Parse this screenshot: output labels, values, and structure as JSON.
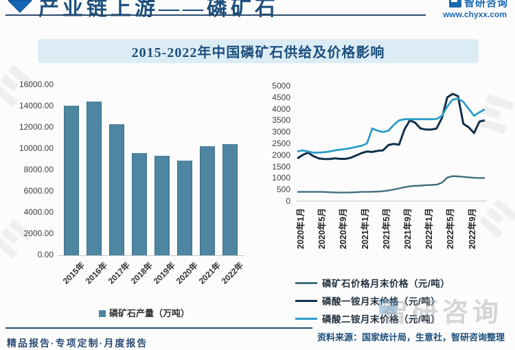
{
  "header": {
    "title": "产业链上游——磷矿石",
    "brand": "智研咨询",
    "website": "www.chyxx.com"
  },
  "main_title": "2015-2022年中国磷矿石供给及价格影响",
  "colors": {
    "navy_text": "#1c4f7c",
    "bar_fill": "#4e86a2",
    "title_bar_bg": "#dcecf4",
    "rock_line": "#3f6f7d",
    "map_line": "#103049",
    "dap_line": "#2b9cc8"
  },
  "chart_data": [
    {
      "type": "bar",
      "title": "",
      "legend": "磷矿石产量（万吨）",
      "categories": [
        "2015年",
        "2016年",
        "2017年",
        "2018年",
        "2019年",
        "2020年",
        "2021年",
        "2022年"
      ],
      "values": [
        14040,
        14440,
        12310,
        9630,
        9330,
        8890,
        10290,
        10470
      ],
      "ylim": [
        0,
        16000
      ],
      "ystep": 2000,
      "ytick_decimals": 2,
      "bar_color": "#4e86a2",
      "grid": false
    },
    {
      "type": "line",
      "title": "",
      "x_start": "2020年1月",
      "x_end": "2022年12月",
      "x_ticks": [
        "2020年1月",
        "2020年5月",
        "2020年9月",
        "2021年1月",
        "2021年5月",
        "2021年9月",
        "2022年1月",
        "2022年5月",
        "2022年9月"
      ],
      "x_tick_month_indices": [
        0,
        4,
        8,
        12,
        16,
        20,
        24,
        28,
        32
      ],
      "ylim": [
        0,
        5000
      ],
      "ystep": 500,
      "grid": false,
      "legend_position": "bottom-left",
      "series": [
        {
          "name": "磷矿石价格月末价格（元/吨）",
          "color": "#3f6f7d",
          "values": [
            400,
            400,
            400,
            400,
            400,
            395,
            385,
            375,
            370,
            370,
            375,
            385,
            400,
            400,
            405,
            410,
            430,
            460,
            500,
            550,
            600,
            640,
            660,
            670,
            690,
            700,
            710,
            800,
            1020,
            1080,
            1070,
            1050,
            1030,
            1010,
            1000,
            1005
          ]
        },
        {
          "name": "磷酸一铵月末价格（元/吨）",
          "color": "#103049",
          "values": [
            1850,
            2000,
            2100,
            1950,
            1850,
            1820,
            1820,
            1850,
            1830,
            1830,
            1880,
            1980,
            2080,
            2150,
            2130,
            2180,
            2200,
            2430,
            2480,
            2450,
            3100,
            3500,
            3400,
            3150,
            3100,
            3100,
            3150,
            3600,
            4500,
            4650,
            4550,
            3350,
            3200,
            2950,
            3450,
            3500
          ]
        },
        {
          "name": "磷酸二铵月末价格（元/吨）",
          "color": "#2b9cc8",
          "values": [
            2150,
            2200,
            2150,
            2100,
            2100,
            2120,
            2150,
            2200,
            2230,
            2260,
            2300,
            2350,
            2400,
            2500,
            3150,
            3050,
            3000,
            3050,
            3300,
            3500,
            3550,
            3550,
            3550,
            3550,
            3550,
            3550,
            3560,
            3700,
            4100,
            4400,
            4450,
            4300,
            4000,
            3700,
            3850,
            3980
          ]
        }
      ]
    }
  ],
  "footer": {
    "source": "资料来源：国家统计局，生意社，智研咨询整理",
    "tagline": "精品报告·专项定制·月度报告"
  },
  "watermark": "智研咨询"
}
